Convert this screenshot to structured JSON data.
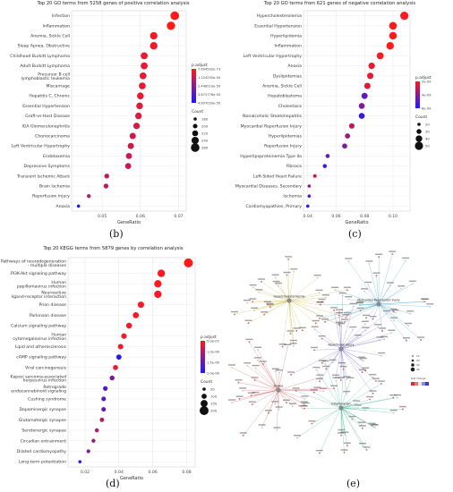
{
  "labels": {
    "a": "",
    "b": "(b)",
    "c": "(c)",
    "d": "(d)",
    "e": "(e)"
  },
  "colors": {
    "high": "#ff1a1a",
    "low": "#1a1aff",
    "grid": "#e6e6e6",
    "axis": "#555555"
  },
  "chart_data": [
    {
      "id": "b",
      "type": "scatter",
      "title": "Top 20 GO terms from 5258 genes of positive correlation analysis",
      "xlabel": "GeneRatio",
      "ylabel": "",
      "xlim": [
        0.042,
        0.072
      ],
      "xticks": [
        0.05,
        0.06,
        0.07
      ],
      "xtick_labels": [
        "0.05",
        "0.06",
        "0.07"
      ],
      "categories": [
        "Infection",
        "Inflammation",
        "Anemia, Sickle Cell",
        "Sleep Apnea, Obstructive",
        "Childhood Burkitt Lymphoma",
        "Adult Burkitt Lymphoma",
        "Precursor B cell lymphoblastic leukemia",
        "Miscarriage",
        "Hepatitis C, Chronic",
        "Essential Hypertension",
        "Graft-vs-Host Disease",
        "IGA Glomerulonephritis",
        "Choriocarcinoma",
        "Left Ventricular Hypertrophy",
        "Endotoxemia",
        "Depressive Symptoms",
        "Transient Ischemic Attack",
        "Brain Ischemia",
        "Reperfusion Injury",
        "Anoxia"
      ],
      "x": [
        0.069,
        0.068,
        0.0635,
        0.0635,
        0.061,
        0.061,
        0.0607,
        0.0605,
        0.06,
        0.0598,
        0.0595,
        0.059,
        0.058,
        0.0575,
        0.057,
        0.0568,
        0.0512,
        0.051,
        0.0465,
        0.0438
      ],
      "count": [
        260,
        255,
        240,
        240,
        232,
        232,
        230,
        229,
        228,
        226,
        225,
        223,
        219,
        218,
        216,
        215,
        195,
        194,
        177,
        166
      ],
      "color_value": [
        0.0,
        0.0,
        0.05,
        0.05,
        0.1,
        0.1,
        0.1,
        0.12,
        0.12,
        0.14,
        0.16,
        0.18,
        0.2,
        0.22,
        0.24,
        0.24,
        0.28,
        0.3,
        0.35,
        1.0
      ],
      "legend_color_title": "p.adjust",
      "legend_color_labels": [
        "7.604502e-73",
        "1.224255e-50",
        "2.448510e-50",
        "3.672776e-50",
        "4.897020e-50"
      ],
      "legend_size_title": "Count",
      "legend_size_labels": [
        "180",
        "200",
        "220",
        "240",
        "260"
      ]
    },
    {
      "id": "c",
      "type": "scatter",
      "title": "Top 20 GO terms from 621 genes of negative correlation analysis",
      "xlabel": "GeneRatio",
      "ylabel": "",
      "xlim": [
        0.037,
        0.112
      ],
      "xticks": [
        0.04,
        0.06,
        0.08,
        0.1
      ],
      "xtick_labels": [
        "0.04",
        "0.06",
        "0.08",
        "0.10"
      ],
      "categories": [
        "Hypercholesterolemia",
        "Essential Hypertension",
        "Hyperlipidemia",
        "Inflammation",
        "Left Ventricular Hypertrophy",
        "Anoxia",
        "Dyslipidemias",
        "Anemia, Sickle Cell",
        "Hepatoblastoma",
        "Cholestasis",
        "Nonalcoholic Steatohepatitis",
        "Myocardial Reperfusion Injury",
        "Hyperlipidemias",
        "Reperfusion Injury",
        "Hyperlipoproteinemia Type IIa",
        "Fibrosis",
        "Left-Sided Heart Failure",
        "Myocardial Diseases, Secondary",
        "Ischemia",
        "Cardiomyopathies, Primary"
      ],
      "x": [
        0.108,
        0.1,
        0.1,
        0.098,
        0.091,
        0.085,
        0.084,
        0.082,
        0.08,
        0.078,
        0.078,
        0.071,
        0.068,
        0.066,
        0.054,
        0.052,
        0.045,
        0.041,
        0.041,
        0.04
      ],
      "count": [
        68,
        63,
        62,
        61,
        57,
        53,
        52,
        51,
        50,
        48,
        48,
        44,
        42,
        41,
        33,
        32,
        28,
        25,
        25,
        25
      ],
      "color_value": [
        0.02,
        0.0,
        0.0,
        0.0,
        0.05,
        0.1,
        0.1,
        0.15,
        0.7,
        0.55,
        0.85,
        0.3,
        0.45,
        0.55,
        0.7,
        0.85,
        0.2,
        0.5,
        0.7,
        0.9
      ],
      "legend_color_title": "p.adjust",
      "legend_color_labels": [
        "2e-09",
        "4e-09",
        "6e-09"
      ],
      "legend_size_title": "Count",
      "legend_size_labels": [
        "20",
        "30",
        "40",
        "50"
      ]
    },
    {
      "id": "d",
      "type": "scatter",
      "title": "Top 20 KEGG terms from 5879 genes by correlation analysis",
      "xlabel": "GeneRatio",
      "ylabel": "",
      "xlim": [
        0.01,
        0.085
      ],
      "xticks": [
        0.02,
        0.04,
        0.06,
        0.08
      ],
      "xtick_labels": [
        "0.02",
        "0.04",
        "0.06",
        "0.08"
      ],
      "categories": [
        "Pathways of neurodegeneration - multiple diseases",
        "PI3K-Akt signaling pathway",
        "Human papillomavirus infection",
        "Neuroactive ligand-receptor interaction",
        "Prion disease",
        "Parkinson disease",
        "Calcium signaling pathway",
        "Human cytomegalovirus infection",
        "Lipid and atherosclerosis",
        "cAMP signaling pathway",
        "Viral carcinogenesis",
        "Kaposi sarcoma-associated herpesvirus infection",
        "Retrograde endocannabinoid signaling",
        "Cushing syndrome",
        "Dopaminergic synapse",
        "Glutamatergic synapse",
        "Serotonergic synapse",
        "Circadian entrainment",
        "Dilated cardiomyopathy",
        "Long-term potentiation"
      ],
      "x": [
        0.081,
        0.065,
        0.063,
        0.063,
        0.053,
        0.05,
        0.046,
        0.043,
        0.041,
        0.04,
        0.038,
        0.036,
        0.032,
        0.031,
        0.031,
        0.03,
        0.027,
        0.025,
        0.022,
        0.017
      ],
      "count": [
        260,
        210,
        205,
        205,
        170,
        160,
        150,
        140,
        135,
        130,
        125,
        120,
        110,
        105,
        105,
        100,
        90,
        85,
        75,
        60
      ],
      "color_value": [
        0.0,
        0.02,
        0.02,
        0.05,
        0.03,
        0.03,
        0.05,
        0.05,
        0.08,
        0.95,
        0.1,
        0.55,
        0.8,
        0.75,
        0.7,
        0.3,
        0.35,
        0.45,
        0.55,
        0.9
      ],
      "legend_color_title": "p.adjust",
      "legend_color_labels": [
        "5.0e-07",
        "1.0e-06",
        "1.5e-06",
        "2.0e-06"
      ],
      "legend_size_title": "Count",
      "legend_size_labels": [
        "50",
        "100",
        "150",
        "200"
      ]
    }
  ],
  "network": {
    "hubs": [
      "Hypercholesterolemia",
      "Myocardial Reperfusion Injury",
      "Reperfusion Injury",
      "Anoxia",
      "Inflammation"
    ],
    "legend_size_labels": [
      "10",
      "20",
      "30",
      "40"
    ],
    "legend_color_title": "fold change"
  }
}
